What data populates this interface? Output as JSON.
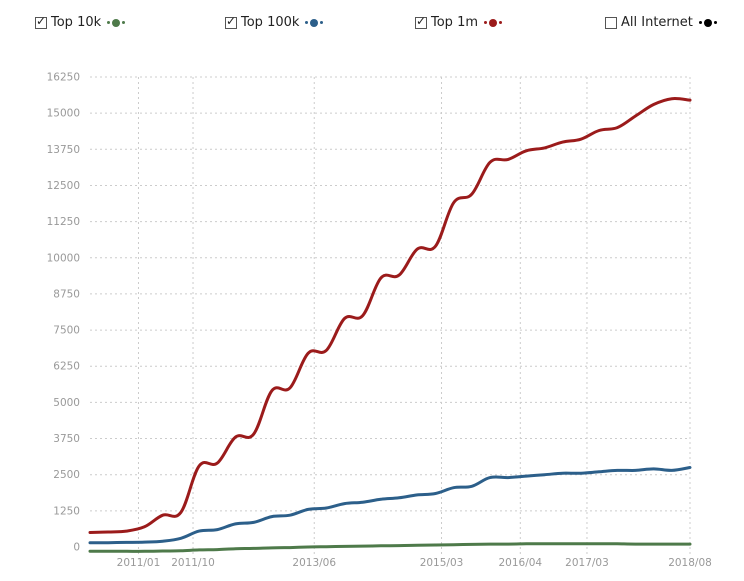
{
  "legend": [
    {
      "label": "Top 10k",
      "checked": true,
      "color": "#4e7a4a"
    },
    {
      "label": "Top 100k",
      "checked": true,
      "color": "#2c5f8a"
    },
    {
      "label": "Top 1m",
      "checked": true,
      "color": "#9b1b1b"
    },
    {
      "label": "All Internet",
      "checked": false,
      "color": "#000000"
    }
  ],
  "chart_data": {
    "type": "line",
    "title": "",
    "xlabel": "",
    "ylabel": "",
    "ylim": [
      0,
      16250
    ],
    "y_ticks": [
      0,
      1250,
      2500,
      3750,
      5000,
      6250,
      7500,
      8750,
      10000,
      11250,
      12500,
      13750,
      15000,
      16250
    ],
    "x_tick_labels": [
      "2011/01",
      "2011/10",
      "2013/06",
      "2015/03",
      "2016/04",
      "2017/03",
      "2018/08"
    ],
    "x_tick_positions": [
      "2011-01",
      "2011-10",
      "2013-06",
      "2015-03",
      "2016-04",
      "2017-03",
      "2018-08"
    ],
    "grid": true,
    "series": [
      {
        "name": "Top 1m",
        "color": "#9b1b1b",
        "x": [
          "2010-05",
          "2010-08",
          "2010-11",
          "2011-02",
          "2011-05",
          "2011-08",
          "2011-11",
          "2012-02",
          "2012-05",
          "2012-08",
          "2012-11",
          "2013-02",
          "2013-05",
          "2013-08",
          "2013-11",
          "2014-02",
          "2014-05",
          "2014-08",
          "2014-11",
          "2015-02",
          "2015-05",
          "2015-08",
          "2015-11",
          "2016-02",
          "2016-05",
          "2016-08",
          "2016-11",
          "2017-02",
          "2017-05",
          "2017-08",
          "2017-11",
          "2018-02",
          "2018-05",
          "2018-08"
        ],
        "values": [
          500,
          520,
          550,
          700,
          1100,
          1200,
          2800,
          2900,
          3800,
          3900,
          5400,
          5500,
          6700,
          6800,
          7900,
          8000,
          9300,
          9400,
          10300,
          10400,
          11900,
          12200,
          13300,
          13400,
          13700,
          13800,
          14000,
          14100,
          14400,
          14500,
          14900,
          15300,
          15500,
          15450
        ]
      },
      {
        "name": "Top 100k",
        "color": "#2c5f8a",
        "x": [
          "2010-05",
          "2010-08",
          "2010-11",
          "2011-02",
          "2011-05",
          "2011-08",
          "2011-11",
          "2012-02",
          "2012-05",
          "2012-08",
          "2012-11",
          "2013-02",
          "2013-05",
          "2013-08",
          "2013-11",
          "2014-02",
          "2014-05",
          "2014-08",
          "2014-11",
          "2015-02",
          "2015-05",
          "2015-08",
          "2015-11",
          "2016-02",
          "2016-05",
          "2016-08",
          "2016-11",
          "2017-02",
          "2017-05",
          "2017-08",
          "2017-11",
          "2018-02",
          "2018-05",
          "2018-08"
        ],
        "values": [
          150,
          150,
          160,
          170,
          200,
          300,
          550,
          600,
          800,
          850,
          1050,
          1100,
          1300,
          1350,
          1500,
          1550,
          1650,
          1700,
          1800,
          1850,
          2050,
          2100,
          2400,
          2400,
          2450,
          2500,
          2550,
          2550,
          2600,
          2650,
          2650,
          2700,
          2650,
          2750
        ]
      },
      {
        "name": "Top 10k",
        "color": "#4e7a4a",
        "x": [
          "2010-05",
          "2010-08",
          "2010-11",
          "2011-02",
          "2011-05",
          "2011-08",
          "2011-11",
          "2012-02",
          "2012-05",
          "2012-08",
          "2012-11",
          "2013-02",
          "2013-05",
          "2013-08",
          "2013-11",
          "2014-02",
          "2014-05",
          "2014-08",
          "2014-11",
          "2015-02",
          "2015-05",
          "2015-08",
          "2015-11",
          "2016-02",
          "2016-05",
          "2016-08",
          "2016-11",
          "2017-02",
          "2017-05",
          "2017-08",
          "2017-11",
          "2018-02",
          "2018-05",
          "2018-08"
        ],
        "values": [
          -150,
          -150,
          -150,
          -150,
          -140,
          -130,
          -100,
          -90,
          -60,
          -50,
          -30,
          -20,
          0,
          10,
          20,
          30,
          40,
          50,
          60,
          70,
          80,
          90,
          100,
          100,
          110,
          110,
          110,
          110,
          110,
          110,
          100,
          100,
          100,
          100
        ]
      }
    ]
  }
}
